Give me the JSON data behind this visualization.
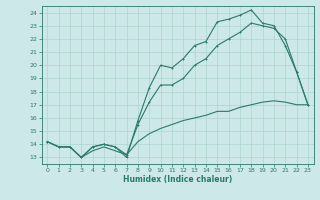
{
  "xlabel": "Humidex (Indice chaleur)",
  "bg_color": "#cce8e8",
  "line_color": "#2a7a6a",
  "grid_color": "#b0d4d0",
  "xlim": [
    -0.5,
    23.5
  ],
  "ylim": [
    12.5,
    24.5
  ],
  "xticks": [
    0,
    1,
    2,
    3,
    4,
    5,
    6,
    7,
    8,
    9,
    10,
    11,
    12,
    13,
    14,
    15,
    16,
    17,
    18,
    19,
    20,
    21,
    22,
    23
  ],
  "yticks": [
    13,
    14,
    15,
    16,
    17,
    18,
    19,
    20,
    21,
    22,
    23,
    24
  ],
  "line1_x": [
    0,
    1,
    2,
    3,
    4,
    5,
    6,
    7,
    8,
    9,
    10,
    11,
    12,
    13,
    14,
    15,
    16,
    17,
    18,
    19,
    20,
    21,
    22,
    23
  ],
  "line1_y": [
    14.2,
    13.8,
    13.8,
    13.0,
    13.8,
    14.0,
    13.8,
    13.0,
    15.8,
    18.3,
    20.0,
    19.8,
    20.5,
    21.5,
    21.8,
    23.3,
    23.5,
    23.8,
    24.2,
    23.2,
    23.0,
    21.5,
    19.5,
    17.0
  ],
  "line2_x": [
    0,
    1,
    2,
    3,
    4,
    5,
    6,
    7,
    8,
    9,
    10,
    11,
    12,
    13,
    14,
    15,
    16,
    17,
    18,
    19,
    20,
    21,
    22,
    23
  ],
  "line2_y": [
    14.2,
    13.8,
    13.8,
    13.0,
    13.8,
    14.0,
    13.8,
    13.2,
    15.5,
    17.2,
    18.5,
    18.5,
    19.0,
    20.0,
    20.5,
    21.5,
    22.0,
    22.5,
    23.2,
    23.0,
    22.8,
    22.0,
    19.5,
    17.0
  ],
  "line3_x": [
    0,
    1,
    2,
    3,
    4,
    5,
    6,
    7,
    8,
    9,
    10,
    11,
    12,
    13,
    14,
    15,
    16,
    17,
    18,
    19,
    20,
    21,
    22,
    23
  ],
  "line3_y": [
    14.2,
    13.8,
    13.8,
    13.0,
    13.5,
    13.8,
    13.5,
    13.2,
    14.2,
    14.8,
    15.2,
    15.5,
    15.8,
    16.0,
    16.2,
    16.5,
    16.5,
    16.8,
    17.0,
    17.2,
    17.3,
    17.2,
    17.0,
    17.0
  ]
}
